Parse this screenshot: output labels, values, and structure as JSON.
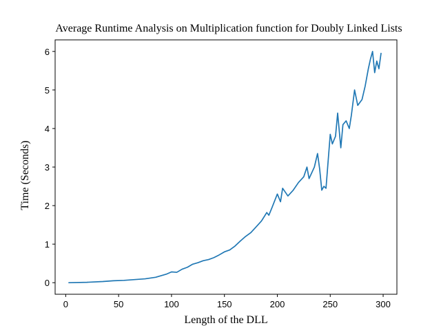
{
  "chart_data": {
    "type": "line",
    "title": "Average Runtime Analysis on Multiplication function for Doubly Linked Lists",
    "xlabel": "Length of the DLL",
    "ylabel": "Time (Seconds)",
    "xlim": [
      -10,
      313
    ],
    "ylim": [
      -0.3,
      6.3
    ],
    "xticks": [
      0,
      50,
      100,
      150,
      200,
      250,
      300
    ],
    "yticks": [
      0,
      1,
      2,
      3,
      4,
      5,
      6
    ],
    "grid": false,
    "legend": "none",
    "series": [
      {
        "color": "#1f77b4",
        "x": [
          3,
          20,
          35,
          45,
          55,
          65,
          75,
          85,
          90,
          95,
          100,
          105,
          110,
          115,
          120,
          125,
          130,
          135,
          140,
          145,
          150,
          155,
          160,
          165,
          170,
          175,
          180,
          185,
          190,
          192,
          195,
          200,
          203,
          205,
          210,
          215,
          220,
          225,
          228,
          230,
          235,
          238,
          240,
          242,
          244,
          246,
          250,
          252,
          255,
          257,
          260,
          262,
          265,
          268,
          270,
          273,
          276,
          280,
          283,
          286,
          288,
          290,
          292,
          294,
          296,
          298
        ],
        "y": [
          0.0,
          0.01,
          0.03,
          0.05,
          0.06,
          0.08,
          0.1,
          0.14,
          0.18,
          0.22,
          0.28,
          0.27,
          0.35,
          0.4,
          0.48,
          0.52,
          0.57,
          0.6,
          0.65,
          0.72,
          0.8,
          0.85,
          0.95,
          1.08,
          1.2,
          1.3,
          1.45,
          1.6,
          1.82,
          1.75,
          1.95,
          2.3,
          2.1,
          2.45,
          2.25,
          2.4,
          2.6,
          2.75,
          3.0,
          2.7,
          3.0,
          3.35,
          2.95,
          2.4,
          2.5,
          2.45,
          3.85,
          3.6,
          3.8,
          4.4,
          3.5,
          4.1,
          4.2,
          4.0,
          4.35,
          5.0,
          4.6,
          4.75,
          5.1,
          5.55,
          5.8,
          6.0,
          5.45,
          5.75,
          5.55,
          5.95
        ]
      }
    ]
  }
}
